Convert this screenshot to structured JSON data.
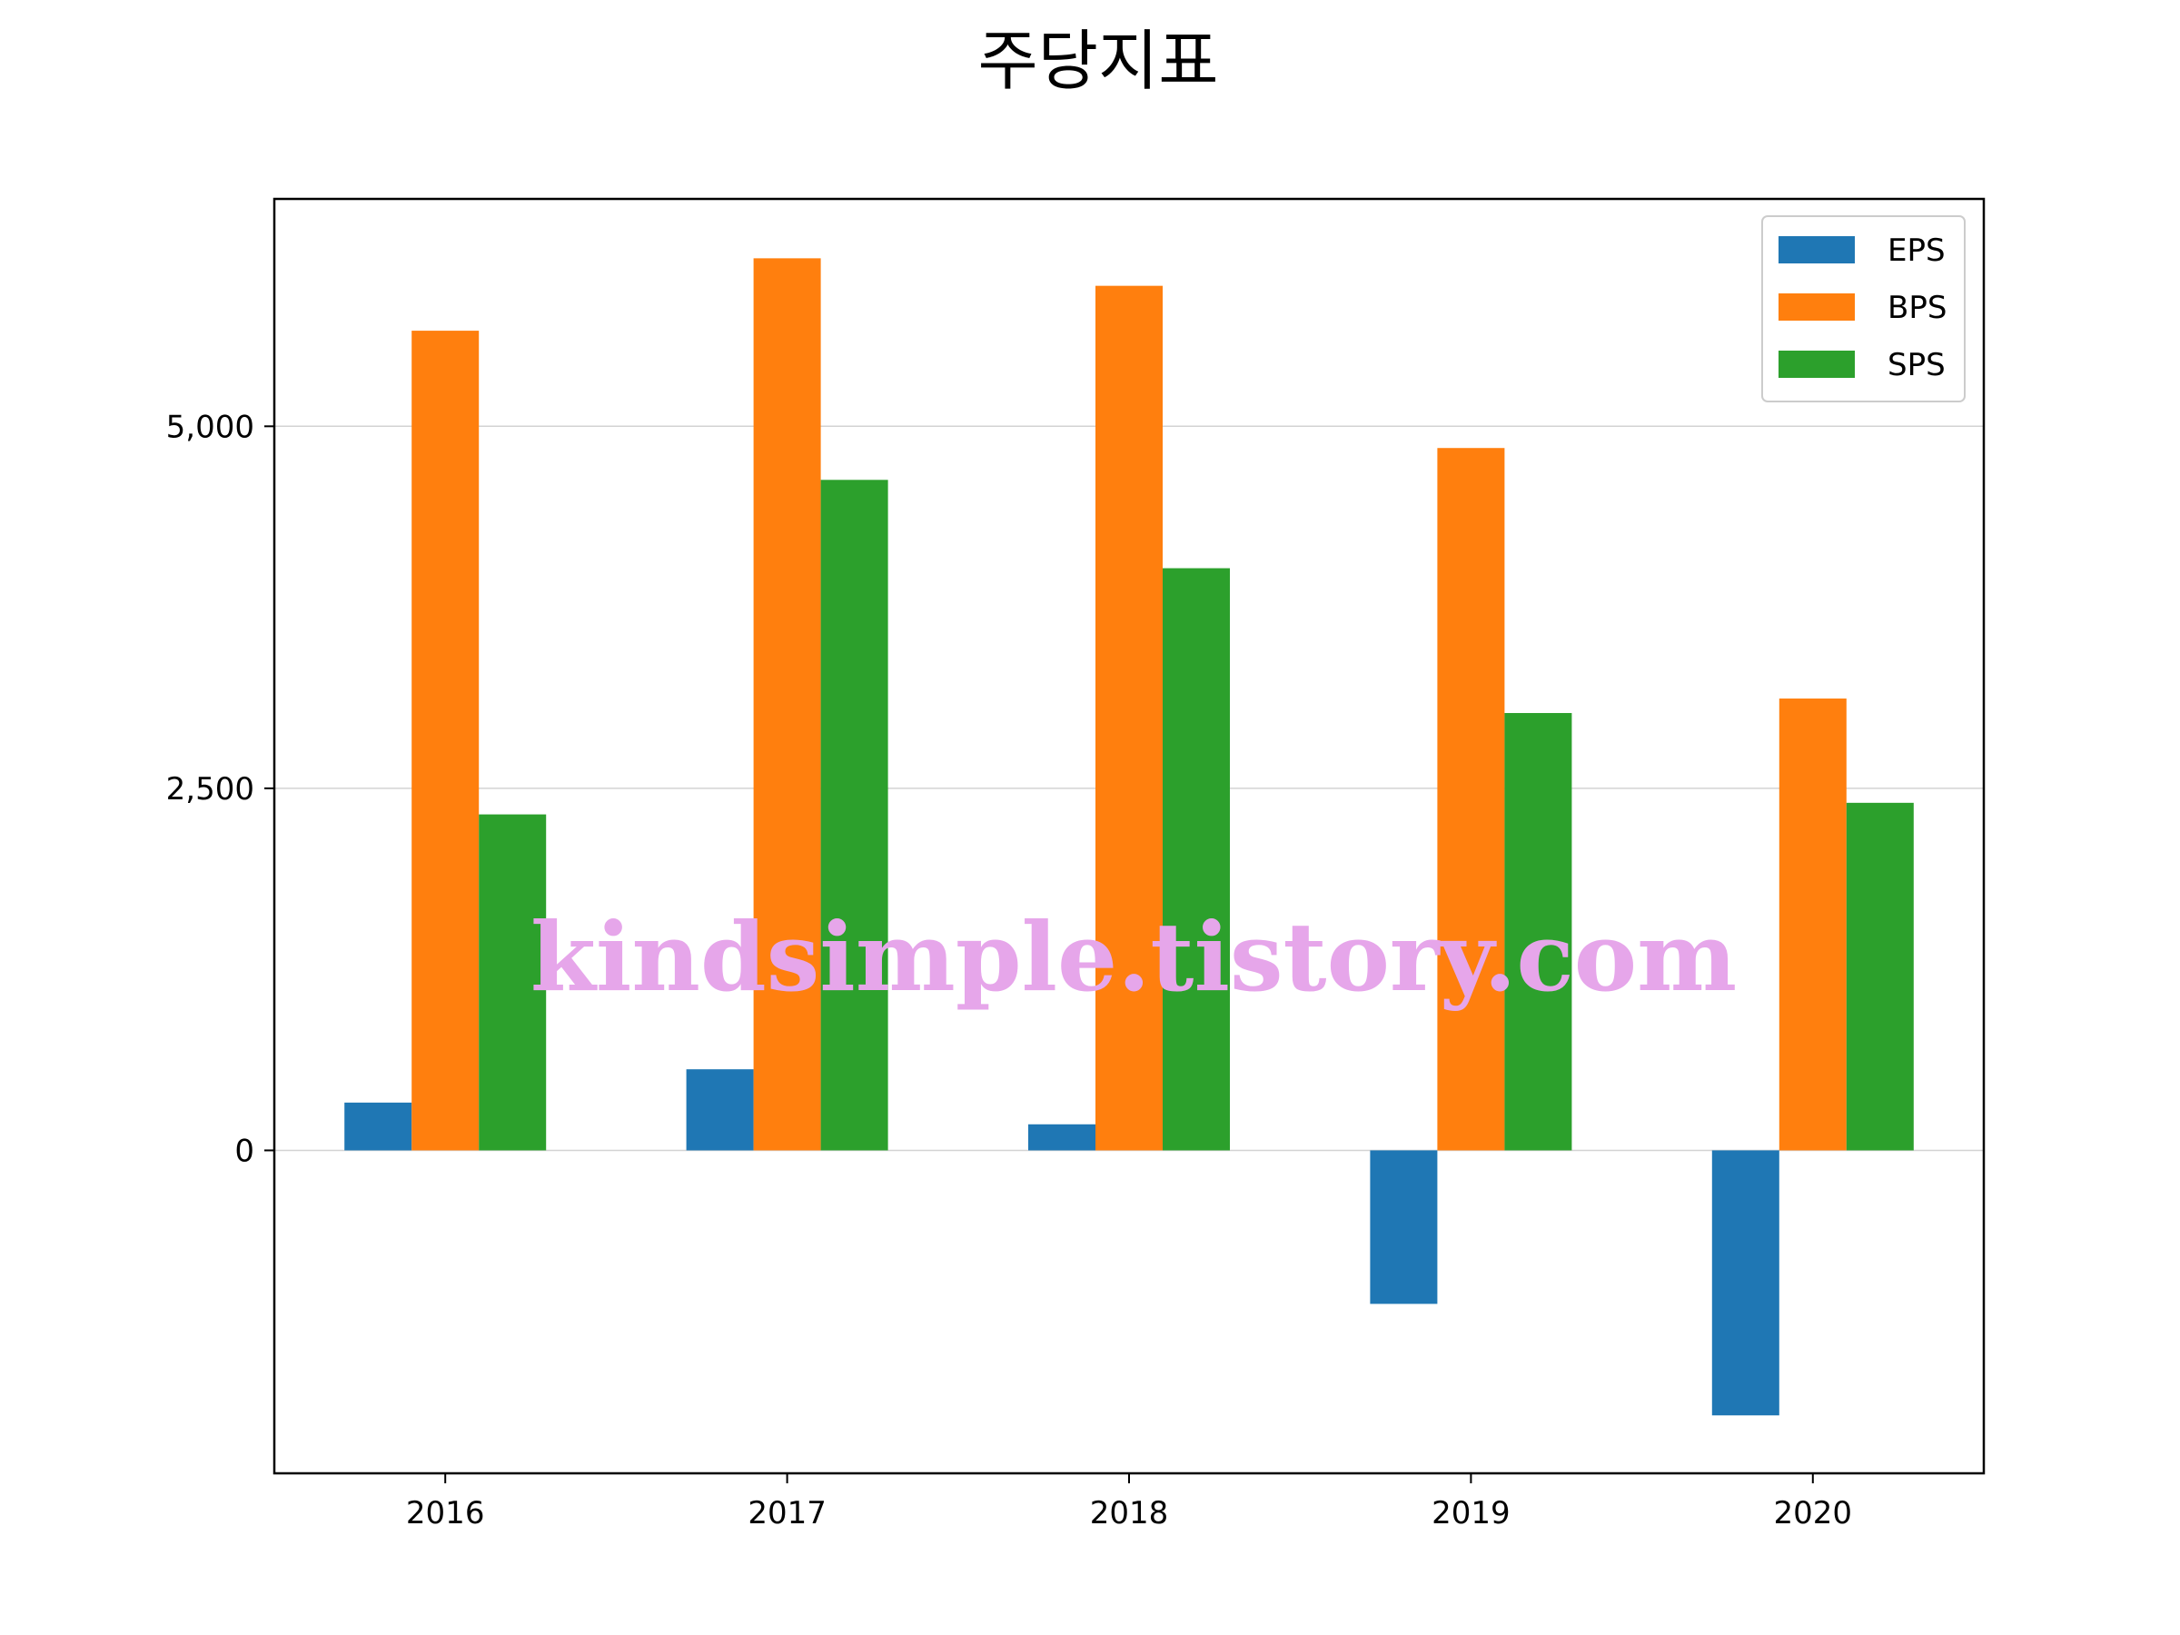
{
  "chart_data": {
    "type": "bar",
    "title": "주당지표",
    "categories": [
      "2016",
      "2017",
      "2018",
      "2019",
      "2020"
    ],
    "series": [
      {
        "name": "EPS",
        "values": [
          330,
          560,
          180,
          -1060,
          -1830
        ]
      },
      {
        "name": "BPS",
        "values": [
          5660,
          6160,
          5970,
          4850,
          3120
        ]
      },
      {
        "name": "SPS",
        "values": [
          2320,
          4630,
          4020,
          3020,
          2400
        ]
      }
    ],
    "ylim": [
      -2230,
      6570
    ],
    "yticks": [
      0,
      2500,
      5000
    ],
    "ytick_labels": [
      "0",
      "2,500",
      "5,000"
    ],
    "grid": "y",
    "legend_position": "top-right",
    "colors": [
      "#1f77b4",
      "#ff7f0e",
      "#2ca02c"
    ]
  },
  "watermark": "kindsimple.tistory.com"
}
